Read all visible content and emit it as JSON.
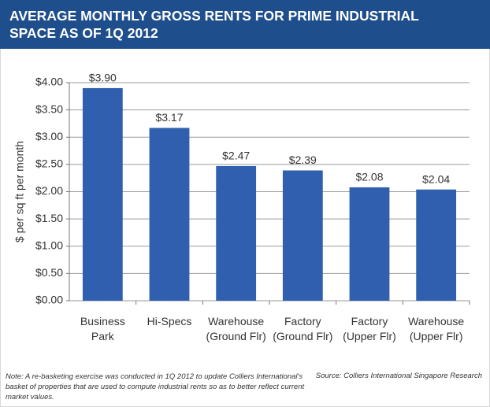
{
  "chart_data": {
    "type": "bar",
    "title": "AVERAGE MONTHLY GROSS RENTS FOR PRIME INDUSTRIAL SPACE AS OF 1Q 2012",
    "y_label": "$ per sq ft per month",
    "categories": [
      "Business Park",
      "Hi-Specs",
      "Warehouse (Ground Flr)",
      "Factory (Ground Flr)",
      "Factory (Upper Flr)",
      "Warehouse (Upper Flr)"
    ],
    "values": [
      3.9,
      3.17,
      2.47,
      2.39,
      2.08,
      2.04
    ],
    "value_labels": [
      "$3.90",
      "$3.17",
      "$2.47",
      "$2.39",
      "$2.08",
      "$2.04"
    ],
    "color": "#2f5fae",
    "ylim": [
      0,
      4
    ],
    "yticks": [
      {
        "value": 0,
        "label": "$0.00"
      },
      {
        "value": 0.5,
        "label": "$0.50"
      },
      {
        "value": 1,
        "label": "$1.00"
      },
      {
        "value": 1.5,
        "label": "$1.50"
      },
      {
        "value": 2,
        "label": "$2.00"
      },
      {
        "value": 2.5,
        "label": "$2.50"
      },
      {
        "value": 3,
        "label": "$3.00"
      },
      {
        "value": 3.5,
        "label": "$3.50"
      },
      {
        "value": 4,
        "label": "$4.00"
      }
    ],
    "grid": true,
    "note": "Note: A re-basketing exercise was conducted in 1Q 2012 to update Colliers International's basket of properties that are used to compute industrial rents so as to better reflect current market values.",
    "source": "Source: Colliers International Singapore Research"
  }
}
